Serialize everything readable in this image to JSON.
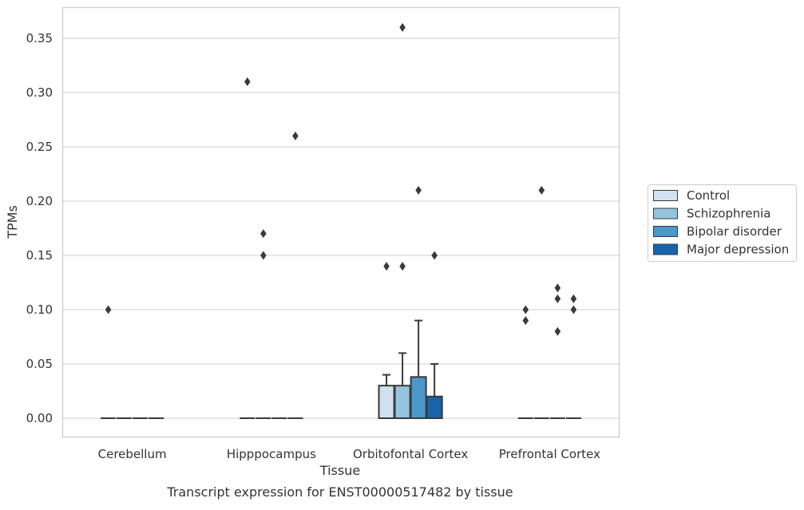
{
  "chart_data": {
    "type": "box",
    "title": "",
    "xlabel": "Tissue",
    "ylabel": "TPMs",
    "caption": "Transcript expression for ENST00000517482 by tissue",
    "ylim": [
      -0.017,
      0.378
    ],
    "yticks": [
      0.0,
      0.05,
      0.1,
      0.15,
      0.2,
      0.25,
      0.3,
      0.35
    ],
    "ytick_labels": [
      "0.00",
      "0.05",
      "0.10",
      "0.15",
      "0.20",
      "0.25",
      "0.30",
      "0.35"
    ],
    "grid": "horizontal",
    "legend_position": "right",
    "categories": [
      "Cerebellum",
      "Hipppocampus",
      "Orbitofontal Cortex",
      "Prefrontal Cortex"
    ],
    "series": [
      {
        "name": "Control",
        "color": "#d0e1f2",
        "boxes": [
          {
            "q1": 0,
            "median": 0,
            "q3": 0,
            "whisker_low": 0,
            "whisker_high": 0,
            "outliers": [
              0.1
            ]
          },
          {
            "q1": 0,
            "median": 0,
            "q3": 0,
            "whisker_low": 0,
            "whisker_high": 0,
            "outliers": [
              0.31
            ]
          },
          {
            "q1": 0,
            "median": 0,
            "q3": 0.03,
            "whisker_low": 0,
            "whisker_high": 0.04,
            "outliers": [
              0.14
            ]
          },
          {
            "q1": 0,
            "median": 0,
            "q3": 0,
            "whisker_low": 0,
            "whisker_high": 0,
            "outliers": [
              0.1,
              0.09
            ]
          }
        ]
      },
      {
        "name": "Schizophrenia",
        "color": "#94c4df",
        "boxes": [
          {
            "q1": 0,
            "median": 0,
            "q3": 0,
            "whisker_low": 0,
            "whisker_high": 0,
            "outliers": []
          },
          {
            "q1": 0,
            "median": 0,
            "q3": 0,
            "whisker_low": 0,
            "whisker_high": 0,
            "outliers": [
              0.17,
              0.15
            ]
          },
          {
            "q1": 0,
            "median": 0,
            "q3": 0.03,
            "whisker_low": 0,
            "whisker_high": 0.06,
            "outliers": [
              0.36,
              0.14
            ]
          },
          {
            "q1": 0,
            "median": 0,
            "q3": 0,
            "whisker_low": 0,
            "whisker_high": 0,
            "outliers": [
              0.21
            ]
          }
        ]
      },
      {
        "name": "Bipolar disorder",
        "color": "#4a98c9",
        "boxes": [
          {
            "q1": 0,
            "median": 0,
            "q3": 0,
            "whisker_low": 0,
            "whisker_high": 0,
            "outliers": []
          },
          {
            "q1": 0,
            "median": 0,
            "q3": 0,
            "whisker_low": 0,
            "whisker_high": 0,
            "outliers": []
          },
          {
            "q1": 0,
            "median": 0,
            "q3": 0.038,
            "whisker_low": 0,
            "whisker_high": 0.09,
            "outliers": [
              0.21
            ]
          },
          {
            "q1": 0,
            "median": 0,
            "q3": 0,
            "whisker_low": 0,
            "whisker_high": 0,
            "outliers": [
              0.12,
              0.11,
              0.08
            ]
          }
        ]
      },
      {
        "name": "Major depression",
        "color": "#1764ab",
        "boxes": [
          {
            "q1": 0,
            "median": 0,
            "q3": 0,
            "whisker_low": 0,
            "whisker_high": 0,
            "outliers": []
          },
          {
            "q1": 0,
            "median": 0,
            "q3": 0,
            "whisker_low": 0,
            "whisker_high": 0,
            "outliers": [
              0.26
            ]
          },
          {
            "q1": 0,
            "median": 0,
            "q3": 0.02,
            "whisker_low": 0,
            "whisker_high": 0.05,
            "outliers": [
              0.15
            ]
          },
          {
            "q1": 0,
            "median": 0,
            "q3": 0,
            "whisker_low": 0,
            "whisker_high": 0,
            "outliers": [
              0.11,
              0.1
            ]
          }
        ]
      }
    ]
  }
}
